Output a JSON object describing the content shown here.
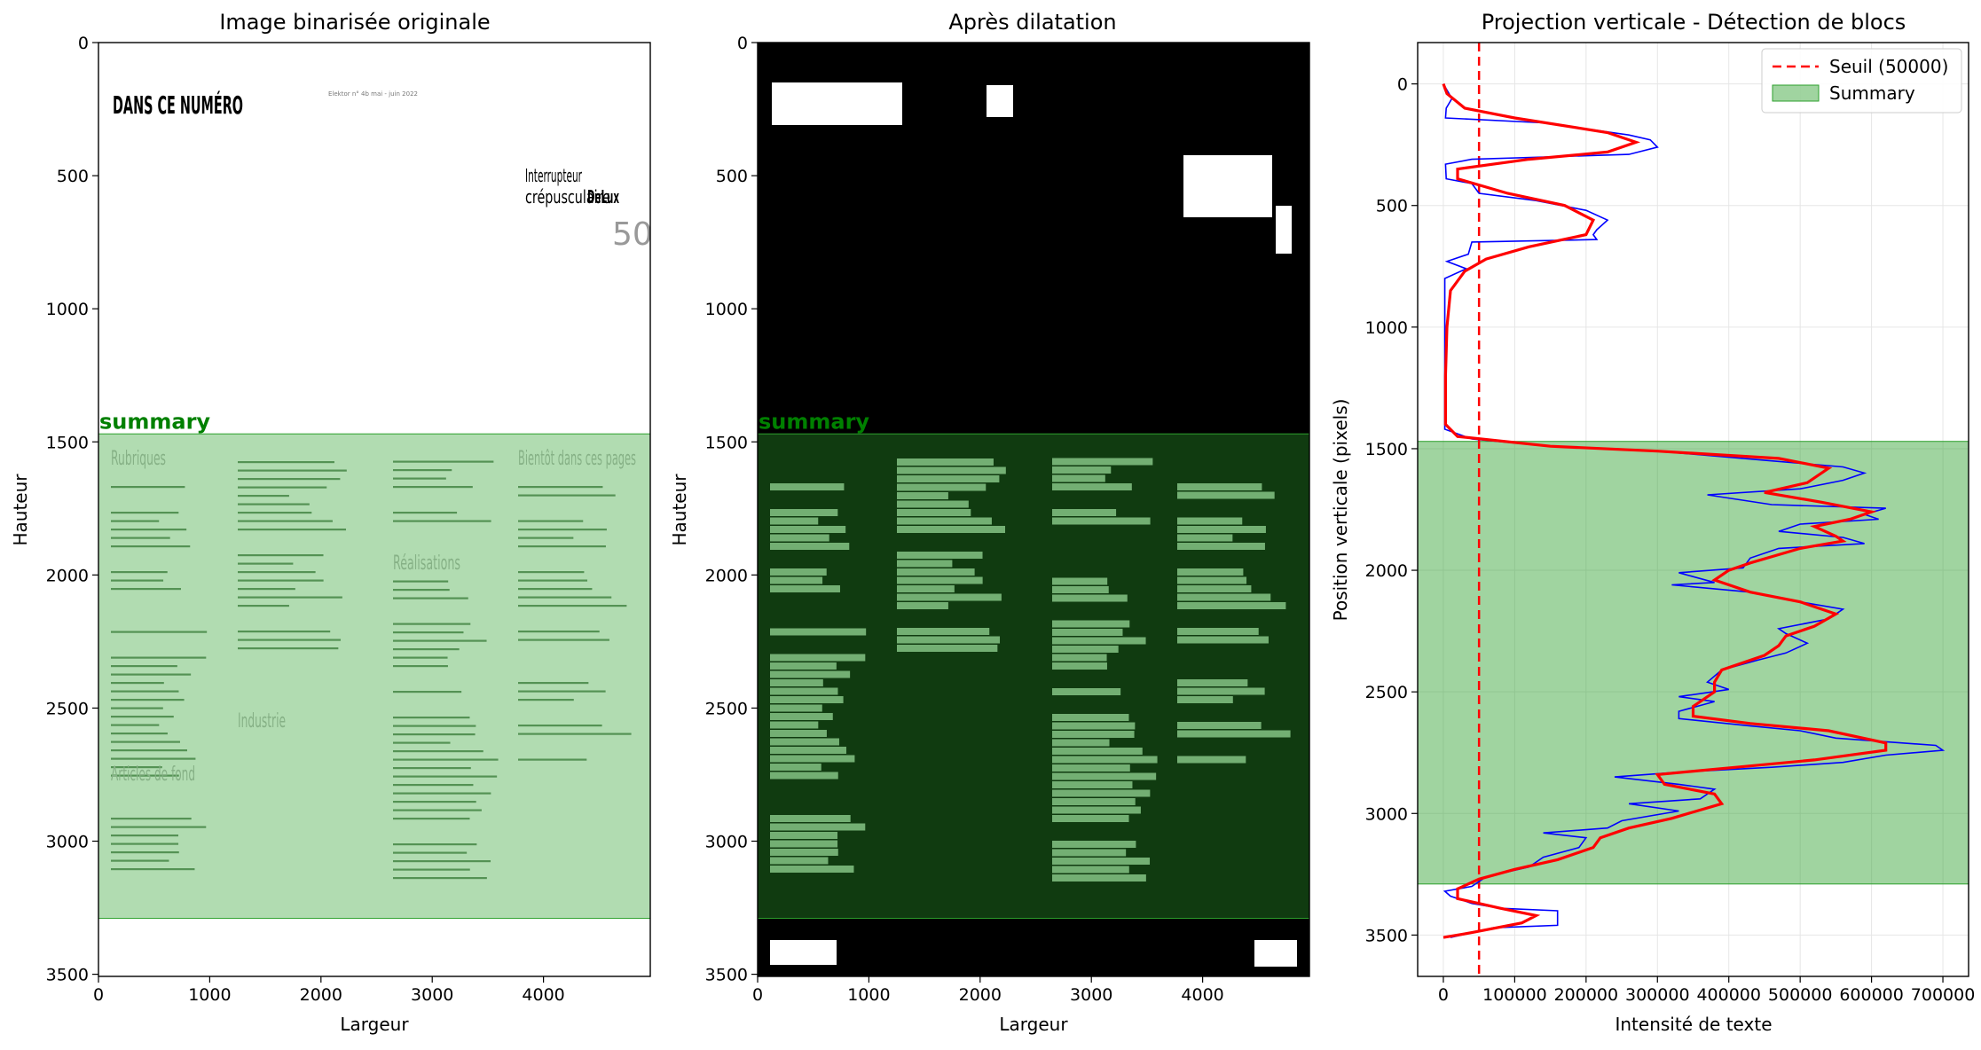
{
  "figure": {
    "background": "#ffffff"
  },
  "chart_data": [
    {
      "type": "image",
      "title": "Image binarisée originale",
      "xlabel": "Largeur",
      "ylabel": "Hauteur",
      "xlim": [
        0,
        4960
      ],
      "ylim": [
        3508,
        0
      ],
      "xticks": [
        0,
        1000,
        2000,
        3000,
        4000
      ],
      "yticks": [
        0,
        500,
        1000,
        1500,
        2000,
        2500,
        3000,
        3500
      ],
      "overlay": {
        "label": "summary",
        "y_range": [
          1470,
          3290
        ],
        "color": "#2ca02c",
        "label_color": "#008000"
      },
      "page_text": {
        "heading": "DANS CE NUMÉRO",
        "corner_text": "Elektor n° 4b mai - juin 2022",
        "headline_1": "Interrupteur",
        "headline_2": "crépusculaire",
        "headline_2b": "DeLux",
        "page_number": "50",
        "col1_heading": "Rubriques",
        "col1_heading_2": "Articles de fond",
        "col2_heading": "Industrie",
        "col3_heading": "Réalisations",
        "col4_heading": "Bientôt dans ces pages"
      }
    },
    {
      "type": "image",
      "title": "Après dilatation",
      "xlabel": "Largeur",
      "ylabel": "Hauteur",
      "xlim": [
        0,
        4960
      ],
      "ylim": [
        3508,
        0
      ],
      "xticks": [
        0,
        1000,
        2000,
        3000,
        4000
      ],
      "yticks": [
        0,
        500,
        1000,
        1500,
        2000,
        2500,
        3000,
        3500
      ],
      "overlay": {
        "label": "summary",
        "y_range": [
          1470,
          3290
        ],
        "color": "#2ca02c",
        "label_color": "#008000"
      }
    },
    {
      "type": "line",
      "title": "Projection verticale - Détection de blocs",
      "xlabel": "Intensité de texte",
      "ylabel": "Position verticale (pixels)",
      "xlim": [
        -36000,
        736000
      ],
      "ylim": [
        3670,
        -170
      ],
      "xticks": [
        0,
        100000,
        200000,
        300000,
        400000,
        500000,
        600000,
        700000
      ],
      "xtick_labels": [
        "0",
        "100000",
        "200000",
        "300000",
        "400000",
        "500000",
        "600000",
        "700000"
      ],
      "yticks": [
        0,
        500,
        1000,
        1500,
        2000,
        2500,
        3000,
        3500
      ],
      "grid": true,
      "threshold": {
        "value": 50000,
        "label": "Seuil (50000)",
        "color": "#ff0000"
      },
      "block": {
        "label": "Summary",
        "y_range": [
          1470,
          3290
        ],
        "color": "#2ca02c"
      },
      "legend": {
        "placement": "top-right"
      },
      "series": [
        {
          "style": "raw",
          "color": "#0000ff",
          "points": [
            [
              0,
              0
            ],
            [
              12000,
              60
            ],
            [
              4000,
              100
            ],
            [
              3000,
              140
            ],
            [
              140000,
              160
            ],
            [
              260000,
              210
            ],
            [
              290000,
              230
            ],
            [
              300000,
              260
            ],
            [
              260000,
              290
            ],
            [
              40000,
              310
            ],
            [
              3000,
              330
            ],
            [
              4000,
              390
            ],
            [
              40000,
              410
            ],
            [
              50000,
              450
            ],
            [
              130000,
              480
            ],
            [
              200000,
              520
            ],
            [
              230000,
              560
            ],
            [
              215000,
              600
            ],
            [
              210000,
              620
            ],
            [
              215000,
              640
            ],
            [
              40000,
              650
            ],
            [
              35000,
              700
            ],
            [
              5000,
              730
            ],
            [
              32000,
              760
            ],
            [
              2000,
              800
            ],
            [
              2000,
              900
            ],
            [
              2000,
              1100
            ],
            [
              2000,
              1300
            ],
            [
              2000,
              1420
            ],
            [
              40000,
              1460
            ],
            [
              150000,
              1490
            ],
            [
              300000,
              1510
            ],
            [
              460000,
              1550
            ],
            [
              560000,
              1575
            ],
            [
              590000,
              1600
            ],
            [
              560000,
              1630
            ],
            [
              500000,
              1665
            ],
            [
              370000,
              1690
            ],
            [
              460000,
              1730
            ],
            [
              620000,
              1745
            ],
            [
              590000,
              1770
            ],
            [
              610000,
              1790
            ],
            [
              500000,
              1810
            ],
            [
              470000,
              1840
            ],
            [
              560000,
              1865
            ],
            [
              590000,
              1890
            ],
            [
              470000,
              1910
            ],
            [
              430000,
              1950
            ],
            [
              420000,
              1990
            ],
            [
              330000,
              2010
            ],
            [
              380000,
              2050
            ],
            [
              320000,
              2060
            ],
            [
              430000,
              2090
            ],
            [
              500000,
              2130
            ],
            [
              560000,
              2160
            ],
            [
              540000,
              2200
            ],
            [
              470000,
              2240
            ],
            [
              480000,
              2260
            ],
            [
              510000,
              2300
            ],
            [
              480000,
              2340
            ],
            [
              440000,
              2370
            ],
            [
              390000,
              2410
            ],
            [
              370000,
              2460
            ],
            [
              400000,
              2490
            ],
            [
              330000,
              2520
            ],
            [
              380000,
              2540
            ],
            [
              330000,
              2580
            ],
            [
              330000,
              2610
            ],
            [
              430000,
              2640
            ],
            [
              500000,
              2660
            ],
            [
              550000,
              2690
            ],
            [
              690000,
              2720
            ],
            [
              700000,
              2740
            ],
            [
              620000,
              2760
            ],
            [
              560000,
              2790
            ],
            [
              460000,
              2810
            ],
            [
              330000,
              2830
            ],
            [
              240000,
              2850
            ],
            [
              330000,
              2880
            ],
            [
              380000,
              2900
            ],
            [
              360000,
              2940
            ],
            [
              260000,
              2960
            ],
            [
              330000,
              2990
            ],
            [
              250000,
              3030
            ],
            [
              230000,
              3060
            ],
            [
              140000,
              3080
            ],
            [
              200000,
              3100
            ],
            [
              190000,
              3140
            ],
            [
              140000,
              3180
            ],
            [
              120000,
              3220
            ],
            [
              60000,
              3260
            ],
            [
              40000,
              3300
            ],
            [
              2000,
              3320
            ],
            [
              10000,
              3340
            ],
            [
              40000,
              3370
            ],
            [
              80000,
              3390
            ],
            [
              160000,
              3400
            ],
            [
              160000,
              3460
            ],
            [
              70000,
              3470
            ],
            [
              10000,
              3510
            ]
          ]
        },
        {
          "style": "smoothed",
          "color": "#ff0000",
          "points": [
            [
              0,
              0
            ],
            [
              5000,
              40
            ],
            [
              30000,
              100
            ],
            [
              100000,
              140
            ],
            [
              230000,
              200
            ],
            [
              270000,
              240
            ],
            [
              230000,
              280
            ],
            [
              120000,
              310
            ],
            [
              20000,
              350
            ],
            [
              20000,
              390
            ],
            [
              90000,
              450
            ],
            [
              170000,
              500
            ],
            [
              210000,
              560
            ],
            [
              200000,
              620
            ],
            [
              120000,
              670
            ],
            [
              60000,
              720
            ],
            [
              30000,
              770
            ],
            [
              10000,
              850
            ],
            [
              5000,
              1000
            ],
            [
              3000,
              1200
            ],
            [
              3000,
              1400
            ],
            [
              20000,
              1450
            ],
            [
              150000,
              1490
            ],
            [
              300000,
              1510
            ],
            [
              470000,
              1540
            ],
            [
              540000,
              1580
            ],
            [
              510000,
              1640
            ],
            [
              450000,
              1680
            ],
            [
              530000,
              1720
            ],
            [
              600000,
              1760
            ],
            [
              570000,
              1790
            ],
            [
              520000,
              1820
            ],
            [
              550000,
              1860
            ],
            [
              560000,
              1880
            ],
            [
              500000,
              1910
            ],
            [
              430000,
              1970
            ],
            [
              400000,
              2000
            ],
            [
              380000,
              2040
            ],
            [
              430000,
              2090
            ],
            [
              500000,
              2130
            ],
            [
              550000,
              2180
            ],
            [
              520000,
              2230
            ],
            [
              480000,
              2270
            ],
            [
              470000,
              2310
            ],
            [
              450000,
              2350
            ],
            [
              390000,
              2410
            ],
            [
              380000,
              2460
            ],
            [
              380000,
              2500
            ],
            [
              350000,
              2560
            ],
            [
              350000,
              2600
            ],
            [
              430000,
              2630
            ],
            [
              540000,
              2660
            ],
            [
              620000,
              2710
            ],
            [
              620000,
              2740
            ],
            [
              520000,
              2780
            ],
            [
              410000,
              2810
            ],
            [
              300000,
              2840
            ],
            [
              310000,
              2880
            ],
            [
              380000,
              2920
            ],
            [
              390000,
              2960
            ],
            [
              320000,
              3020
            ],
            [
              260000,
              3060
            ],
            [
              220000,
              3100
            ],
            [
              210000,
              3140
            ],
            [
              160000,
              3190
            ],
            [
              100000,
              3230
            ],
            [
              50000,
              3270
            ],
            [
              20000,
              3310
            ],
            [
              20000,
              3350
            ],
            [
              80000,
              3390
            ],
            [
              130000,
              3420
            ],
            [
              110000,
              3450
            ],
            [
              40000,
              3490
            ],
            [
              0,
              3510
            ]
          ]
        }
      ]
    }
  ]
}
